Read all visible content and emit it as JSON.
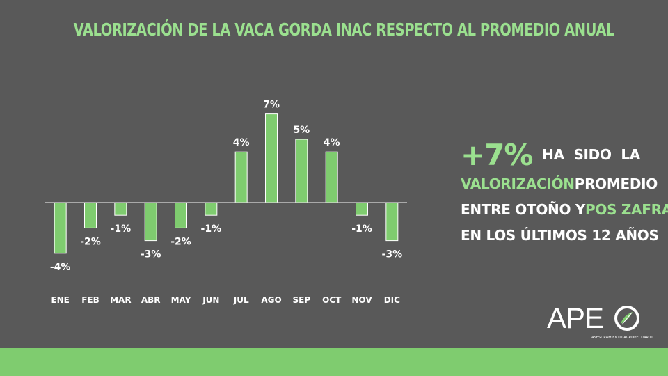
{
  "header": {
    "title": "VALORIZACIÓN DE LA VACA GORDA INAC RESPECTO AL PROMEDIO ANUAL"
  },
  "chart_data": {
    "type": "bar",
    "title": "VALORIZACIÓN DE LA VACA GORDA INAC RESPECTO AL PROMEDIO ANUAL",
    "categories": [
      "ENE",
      "FEB",
      "MAR",
      "ABR",
      "MAY",
      "JUN",
      "JUL",
      "AGO",
      "SEP",
      "OCT",
      "NOV",
      "DIC"
    ],
    "values": [
      -4,
      -2,
      -1,
      -3,
      -2,
      -1,
      4,
      7,
      5,
      4,
      -1,
      -3
    ],
    "value_labels": [
      "-4%",
      "-2%",
      "-1%",
      "-3%",
      "-2%",
      "-1%",
      "4%",
      "7%",
      "5%",
      "4%",
      "-1%",
      "-3%"
    ],
    "unit": "%",
    "xlabel": "",
    "ylabel": "",
    "ylim": [
      -4.5,
      7.5
    ],
    "grid": false,
    "legend": "none",
    "bar_color": "#7fcc6f"
  },
  "insight": {
    "value": "+7%",
    "w1": "HA",
    "w2": "SIDO",
    "w3": "LA",
    "w4": "VALORIZACIÓN",
    "w5": "PROMEDIO",
    "w6": "ENTRE OTOÑO Y",
    "w7": "POS ZAFRA",
    "w8": "EN LOS ÚLTIMOS 12 AÑOS"
  },
  "logo": {
    "brand": "APE",
    "tagline": "ASESORAMIENTO AGROPECUARIO"
  },
  "colors": {
    "background": "#595959",
    "accent": "#9be08f",
    "bar": "#7fcc6f",
    "text": "#ffffff"
  }
}
